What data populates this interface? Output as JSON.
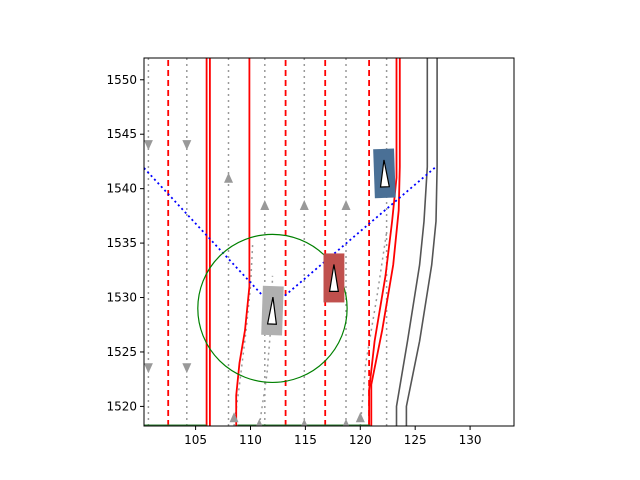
{
  "chart_data": {
    "type": "line",
    "title": "",
    "xlabel": "",
    "ylabel": "",
    "xlim": [
      100.3,
      134.0
    ],
    "ylim": [
      1518.2,
      1552.0
    ],
    "x_ticks": [
      105,
      110,
      115,
      120,
      125,
      130
    ],
    "y_ticks": [
      1520,
      1525,
      1530,
      1535,
      1540,
      1545,
      1550
    ],
    "grid": false,
    "legend": "none",
    "colors": {
      "lane_boundary_solid": "#ff0000",
      "lane_boundary_dashed": "#ff0000",
      "lane_centerline": "#999999",
      "road_edge": "#555555",
      "road_edge_inner": "#4d6f80",
      "field_of_view": "#0000ff",
      "range_circle": "#008000",
      "ego_vehicle": "#b0b0b0",
      "agent_red": "#c0504d",
      "agent_blue": "#4a7096",
      "bottom_edge": "#2e7d32"
    },
    "series": [
      {
        "role": "dashed-boundary",
        "style": "dashed",
        "x": [
          102.5,
          102.5
        ],
        "y": [
          1518.2,
          1552.0
        ]
      },
      {
        "role": "dashed-boundary",
        "style": "dashed",
        "x": [
          113.2,
          113.2
        ],
        "y": [
          1518.2,
          1552.0
        ]
      },
      {
        "role": "dashed-boundary",
        "style": "dashed",
        "x": [
          116.8,
          116.8
        ],
        "y": [
          1518.2,
          1552.0
        ]
      },
      {
        "role": "dashed-boundary",
        "style": "dashed",
        "x": [
          120.8,
          120.8
        ],
        "y": [
          1518.2,
          1552.0
        ]
      },
      {
        "role": "solid-boundary",
        "style": "solid",
        "x": [
          106.0,
          106.0
        ],
        "y": [
          1518.2,
          1552.0
        ]
      },
      {
        "role": "solid-boundary",
        "style": "solid",
        "x": [
          106.3,
          106.3
        ],
        "y": [
          1518.2,
          1552.0
        ]
      },
      {
        "role": "solid-boundary",
        "style": "solid",
        "x": [
          108.7,
          108.7,
          109.0,
          109.5,
          109.9,
          109.9
        ],
        "y": [
          1518.2,
          1521.0,
          1524.0,
          1527.0,
          1531.0,
          1552.0
        ]
      },
      {
        "role": "solid-boundary",
        "style": "solid",
        "x": [
          121.0,
          121.0,
          122.0,
          123.0,
          123.5,
          123.6,
          123.6
        ],
        "y": [
          1518.2,
          1522.0,
          1527.0,
          1533.0,
          1538.0,
          1542.0,
          1552.0
        ]
      },
      {
        "role": "solid-boundary",
        "style": "solid",
        "x": [
          120.8,
          120.8,
          121.3,
          122.3,
          122.9,
          123.3,
          123.3
        ],
        "y": [
          1518.2,
          1521.5,
          1526.0,
          1532.0,
          1537.0,
          1541.0,
          1552.0
        ]
      },
      {
        "role": "road-edge",
        "style": "solid",
        "x": [
          123.3,
          123.3,
          124.3,
          125.4,
          125.8,
          126.1,
          126.1
        ],
        "y": [
          1518.2,
          1520.0,
          1526.0,
          1533.0,
          1537.0,
          1542.0,
          1552.0
        ]
      },
      {
        "role": "road-edge",
        "style": "solid",
        "x": [
          124.2,
          124.2,
          125.4,
          126.5,
          126.9,
          127.0,
          127.0
        ],
        "y": [
          1518.2,
          1520.0,
          1526.0,
          1533.0,
          1537.0,
          1542.0,
          1552.0
        ]
      },
      {
        "role": "centerline",
        "style": "dotted",
        "x": [
          100.7,
          100.7
        ],
        "y": [
          1518.2,
          1552.0
        ]
      },
      {
        "role": "centerline",
        "style": "dotted",
        "x": [
          104.2,
          104.2
        ],
        "y": [
          1518.2,
          1552.0
        ]
      },
      {
        "role": "centerline",
        "style": "dotted",
        "x": [
          108.0,
          108.0
        ],
        "y": [
          1518.2,
          1552.0
        ]
      },
      {
        "role": "centerline",
        "style": "dotted",
        "x": [
          111.3,
          111.3
        ],
        "y": [
          1518.2,
          1552.0
        ]
      },
      {
        "role": "centerline",
        "style": "dotted",
        "x": [
          114.9,
          114.9
        ],
        "y": [
          1518.2,
          1552.0
        ]
      },
      {
        "role": "centerline",
        "style": "dotted",
        "x": [
          118.7,
          118.7
        ],
        "y": [
          1518.2,
          1552.0
        ]
      },
      {
        "role": "centerline",
        "style": "dotted",
        "x": [
          122.4,
          122.4
        ],
        "y": [
          1518.2,
          1552.0
        ]
      },
      {
        "role": "turn-path",
        "style": "dotted",
        "x": [
          108.5,
          109.0,
          109.6,
          110.0,
          110.2
        ],
        "y": [
          1518.2,
          1522.0,
          1527.0,
          1531.0,
          1535.0
        ]
      },
      {
        "role": "turn-path",
        "style": "dotted",
        "x": [
          110.8,
          111.5,
          111.9,
          112.0
        ],
        "y": [
          1518.2,
          1523.0,
          1528.0,
          1532.0
        ]
      },
      {
        "role": "turn-path",
        "style": "dotted",
        "x": [
          120.0,
          120.5,
          121.5,
          122.4
        ],
        "y": [
          1518.2,
          1524.0,
          1530.0,
          1536.0
        ]
      },
      {
        "role": "field-of-view",
        "style": "dotted",
        "x": [
          100.3,
          112.0,
          127.0
        ],
        "y": [
          1541.9,
          1529.2,
          1542.1
        ]
      },
      {
        "role": "range-circle",
        "style": "solid",
        "shape": "circle",
        "cx": 112.0,
        "cy": 1529.0,
        "r": 6.8
      },
      {
        "role": "bottom-edge",
        "style": "solid",
        "x": [
          100.3,
          106.0
        ],
        "y": [
          1518.2,
          1518.2
        ]
      },
      {
        "role": "bottom-edge",
        "style": "solid",
        "x": [
          108.8,
          120.9
        ],
        "y": [
          1518.2,
          1518.2
        ]
      }
    ],
    "arrows": [
      {
        "x": 100.7,
        "y": 1544.0,
        "dir": "down"
      },
      {
        "x": 104.2,
        "y": 1544.0,
        "dir": "down"
      },
      {
        "x": 100.7,
        "y": 1523.5,
        "dir": "down"
      },
      {
        "x": 104.2,
        "y": 1523.5,
        "dir": "down"
      },
      {
        "x": 108.0,
        "y": 1541.0,
        "dir": "up"
      },
      {
        "x": 111.3,
        "y": 1538.5,
        "dir": "up"
      },
      {
        "x": 114.9,
        "y": 1538.5,
        "dir": "up"
      },
      {
        "x": 118.7,
        "y": 1538.5,
        "dir": "up"
      },
      {
        "x": 108.5,
        "y": 1519.0,
        "dir": "up"
      },
      {
        "x": 120.0,
        "y": 1519.0,
        "dir": "up"
      },
      {
        "x": 110.8,
        "y": 1518.4,
        "dir": "up"
      },
      {
        "x": 114.9,
        "y": 1518.4,
        "dir": "up"
      },
      {
        "x": 118.7,
        "y": 1518.4,
        "dir": "up"
      }
    ],
    "vehicles": [
      {
        "role": "ego",
        "x": 112.0,
        "y": 1528.8,
        "w": 1.9,
        "h": 4.5,
        "heading_deg": 2,
        "color": "#b0b0b0"
      },
      {
        "role": "agent",
        "x": 117.6,
        "y": 1531.8,
        "w": 1.9,
        "h": 4.5,
        "heading_deg": 0,
        "color": "#c0504d"
      },
      {
        "role": "agent",
        "x": 122.2,
        "y": 1541.4,
        "w": 1.9,
        "h": 4.5,
        "heading_deg": -2,
        "color": "#4a7096"
      }
    ]
  }
}
